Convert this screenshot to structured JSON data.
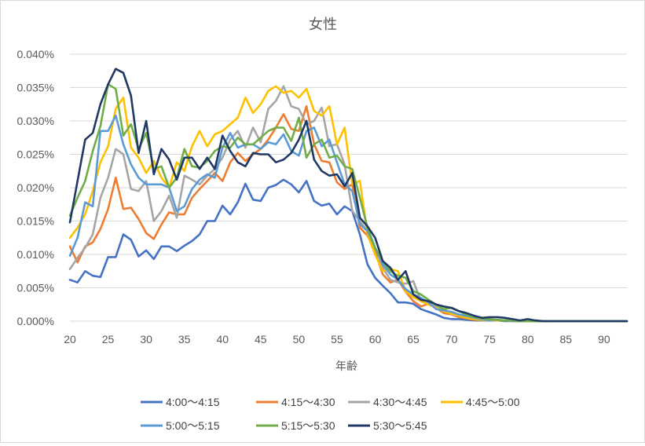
{
  "chart_data": {
    "type": "line",
    "title": "女性",
    "xlabel": "年齢",
    "ylabel": "",
    "xlim": [
      20,
      93
    ],
    "ylim": [
      0,
      0.0004
    ],
    "x_ticks": [
      "20",
      "25",
      "30",
      "35",
      "40",
      "45",
      "50",
      "55",
      "60",
      "65",
      "70",
      "75",
      "80",
      "85",
      "90"
    ],
    "y_ticks": [
      "0.000%",
      "0.005%",
      "0.010%",
      "0.015%",
      "0.020%",
      "0.025%",
      "0.030%",
      "0.035%",
      "0.040%"
    ],
    "grid": "horizontal",
    "legend_position": "bottom",
    "x": [
      20,
      21,
      22,
      23,
      24,
      25,
      26,
      27,
      28,
      29,
      30,
      31,
      32,
      33,
      34,
      35,
      36,
      37,
      38,
      39,
      40,
      41,
      42,
      43,
      44,
      45,
      46,
      47,
      48,
      49,
      50,
      51,
      52,
      53,
      54,
      55,
      56,
      57,
      58,
      59,
      60,
      61,
      62,
      63,
      64,
      65,
      66,
      67,
      68,
      69,
      70,
      71,
      72,
      73,
      74,
      75,
      76,
      77,
      78,
      79,
      80,
      81,
      82,
      83,
      84,
      85,
      86,
      87,
      88,
      89,
      90,
      91,
      92,
      93
    ],
    "series": [
      {
        "name": "4:00〜4:15",
        "color": "#4472c4",
        "values": [
          6.2e-05,
          5.8e-05,
          7.5e-05,
          6.8e-05,
          6.6e-05,
          9.6e-05,
          9.6e-05,
          0.00013,
          0.000122,
          9.7e-05,
          0.000106,
          9.3e-05,
          0.000112,
          0.000112,
          0.000105,
          0.000113,
          0.00012,
          0.00013,
          0.00015,
          0.00015,
          0.000173,
          0.00016,
          0.000178,
          0.000206,
          0.000182,
          0.00018,
          0.0002,
          0.000204,
          0.000212,
          0.000205,
          0.000193,
          0.00021,
          0.00018,
          0.000173,
          0.000176,
          0.00016,
          0.000172,
          0.000165,
          0.00013,
          8.5e-05,
          6.5e-05,
          5.3e-05,
          4.2e-05,
          2.8e-05,
          2.8e-05,
          2.6e-05,
          1.8e-05,
          1.4e-05,
          1e-05,
          5e-06,
          3e-06,
          3e-06,
          2e-06,
          1e-06,
          1e-06,
          1e-06,
          1e-06,
          0.0,
          0.0,
          0.0,
          0.0,
          0.0,
          0.0,
          0.0,
          0.0,
          0.0,
          0.0,
          0.0,
          0.0,
          0.0,
          0.0,
          0.0,
          0.0,
          0.0
        ]
      },
      {
        "name": "4:15〜4:30",
        "color": "#ed7d31",
        "values": [
          0.000112,
          8.8e-05,
          0.000112,
          0.000118,
          0.000138,
          0.000168,
          0.000215,
          0.000168,
          0.00017,
          0.000153,
          0.000132,
          0.000123,
          0.000145,
          0.000163,
          0.00016,
          0.00016,
          0.000185,
          0.000198,
          0.00021,
          0.000222,
          0.00021,
          0.000238,
          0.000252,
          0.00024,
          0.00025,
          0.000258,
          0.000272,
          0.00029,
          0.00031,
          0.000288,
          0.000285,
          0.000322,
          0.000265,
          0.00024,
          0.000238,
          0.000208,
          0.000198,
          0.000205,
          0.00014,
          0.000128,
          0.000105,
          7e-05,
          5.8e-05,
          6.2e-05,
          4.4e-05,
          3e-05,
          2.2e-05,
          2.6e-05,
          2e-05,
          1.2e-05,
          1e-05,
          6e-06,
          4e-06,
          2e-06,
          2e-06,
          2e-06,
          1e-06,
          1e-06,
          0.0,
          0.0,
          0.0,
          0.0,
          0.0,
          0.0,
          0.0,
          0.0,
          0.0,
          0.0,
          0.0,
          0.0,
          0.0,
          0.0,
          0.0,
          0.0
        ]
      },
      {
        "name": "4:30〜4:45",
        "color": "#a5a5a5",
        "values": [
          7.8e-05,
          9.5e-05,
          0.00011,
          0.00013,
          0.000185,
          0.000215,
          0.000258,
          0.00025,
          0.000198,
          0.000195,
          0.00021,
          0.00015,
          0.000165,
          0.000188,
          0.000155,
          0.000218,
          0.000212,
          0.000205,
          0.000218,
          0.000228,
          0.000245,
          0.000272,
          0.000285,
          0.00026,
          0.00029,
          0.000268,
          0.000318,
          0.00033,
          0.000352,
          0.000322,
          0.000318,
          0.000295,
          0.0003,
          0.00032,
          0.000262,
          0.000265,
          0.000235,
          0.000165,
          0.00015,
          0.000135,
          0.0001,
          8e-05,
          6.2e-05,
          5.8e-05,
          5.6e-05,
          6e-05,
          3e-05,
          2.5e-05,
          2.2e-05,
          1.8e-05,
          1e-05,
          8e-06,
          5e-06,
          3e-06,
          2e-06,
          2e-06,
          1e-06,
          1e-06,
          0.0,
          0.0,
          0.0,
          0.0,
          0.0,
          0.0,
          0.0,
          0.0,
          0.0,
          0.0,
          0.0,
          0.0,
          0.0,
          0.0,
          0.0,
          0.0
        ]
      },
      {
        "name": "4:45〜5:00",
        "color": "#ffc000",
        "values": [
          0.000125,
          0.00014,
          0.00016,
          0.000195,
          0.000238,
          0.000262,
          0.000318,
          0.000335,
          0.00026,
          0.000245,
          0.000222,
          0.00024,
          0.000215,
          0.0002,
          0.000238,
          0.000225,
          0.000262,
          0.000285,
          0.000262,
          0.00028,
          0.000285,
          0.000295,
          0.000305,
          0.000335,
          0.000312,
          0.000325,
          0.000345,
          0.000352,
          0.000342,
          0.000345,
          0.000335,
          0.000348,
          0.000315,
          0.000308,
          0.000322,
          0.000265,
          0.00029,
          0.000205,
          0.00021,
          0.00013,
          0.0001,
          7.5e-05,
          7.8e-05,
          7.5e-05,
          4.5e-05,
          3.6e-05,
          3e-05,
          2.5e-05,
          2e-05,
          1.5e-05,
          1.1e-05,
          8e-06,
          5e-06,
          3e-06,
          2e-06,
          2e-06,
          1e-06,
          1e-06,
          0.0,
          0.0,
          0.0,
          0.0,
          0.0,
          0.0,
          0.0,
          0.0,
          0.0,
          0.0,
          0.0,
          0.0,
          0.0,
          0.0,
          0.0,
          0.0
        ]
      },
      {
        "name": "5:00〜5:15",
        "color": "#5b9bd5",
        "values": [
          9.8e-05,
          0.000125,
          0.000178,
          0.000172,
          0.000285,
          0.000285,
          0.000308,
          0.000265,
          0.000235,
          0.000215,
          0.000205,
          0.000205,
          0.000205,
          0.0002,
          0.000165,
          0.000172,
          0.000198,
          0.000212,
          0.00022,
          0.000215,
          0.00026,
          0.000282,
          0.00026,
          0.000265,
          0.000265,
          0.000258,
          0.000268,
          0.000265,
          0.00028,
          0.000255,
          0.000248,
          0.000285,
          0.00029,
          0.000262,
          0.000272,
          0.000238,
          0.000205,
          0.000195,
          0.000145,
          0.000135,
          0.00011,
          8.5e-05,
          7e-05,
          6.2e-05,
          4.8e-05,
          4e-05,
          3.5e-05,
          2.8e-05,
          1.8e-05,
          1.6e-05,
          1.4e-05,
          1e-05,
          8e-06,
          5e-06,
          3e-06,
          2e-06,
          2e-06,
          1e-06,
          0.0,
          0.0,
          0.0,
          0.0,
          0.0,
          0.0,
          0.0,
          0.0,
          0.0,
          0.0,
          0.0,
          0.0,
          0.0,
          0.0,
          0.0,
          0.0
        ]
      },
      {
        "name": "5:15〜5:30",
        "color": "#70ad47",
        "values": [
          0.000158,
          0.000185,
          0.00021,
          0.000255,
          0.000292,
          0.000355,
          0.000348,
          0.000278,
          0.000295,
          0.000258,
          0.000282,
          0.000228,
          0.000232,
          0.0002,
          0.000215,
          0.000258,
          0.000232,
          0.00023,
          0.00024,
          0.000255,
          0.000262,
          0.00026,
          0.000275,
          0.000265,
          0.000265,
          0.000275,
          0.000285,
          0.00029,
          0.00029,
          0.00027,
          0.000305,
          0.000245,
          0.000265,
          0.000272,
          0.000245,
          0.000248,
          0.000232,
          0.000228,
          0.000185,
          0.00014,
          0.00011,
          9e-05,
          7.5e-05,
          6.8e-05,
          6.5e-05,
          4.5e-05,
          4e-05,
          3.2e-05,
          2.5e-05,
          1.8e-05,
          2e-05,
          1.5e-05,
          1e-05,
          6e-06,
          4e-06,
          3e-06,
          2e-06,
          1e-06,
          1e-06,
          0.0,
          0.0,
          0.0,
          0.0,
          0.0,
          0.0,
          0.0,
          0.0,
          0.0,
          0.0,
          0.0,
          0.0,
          0.0,
          0.0,
          0.0
        ]
      },
      {
        "name": "5:30〜5:45",
        "color": "#203864",
        "values": [
          0.000148,
          0.00021,
          0.000272,
          0.000282,
          0.000325,
          0.000355,
          0.000378,
          0.000372,
          0.000338,
          0.000252,
          0.0003,
          0.00022,
          0.000258,
          0.000242,
          0.000212,
          0.000245,
          0.000245,
          0.000228,
          0.000245,
          0.000228,
          0.000278,
          0.000255,
          0.000238,
          0.000232,
          0.000252,
          0.00025,
          0.00025,
          0.000238,
          0.000242,
          0.000252,
          0.000272,
          0.0003,
          0.000242,
          0.000225,
          0.000218,
          0.00022,
          0.000202,
          0.000222,
          0.000155,
          0.000142,
          0.000125,
          9e-05,
          8e-05,
          6.2e-05,
          7.5e-05,
          4e-05,
          3.2e-05,
          3e-05,
          2.5e-05,
          2.2e-05,
          2e-05,
          1.5e-05,
          1.2e-05,
          8e-06,
          5e-06,
          6e-06,
          6e-06,
          5e-06,
          3e-06,
          1e-06,
          3e-06,
          1e-06,
          0.0,
          0.0,
          0.0,
          0.0,
          0.0,
          0.0,
          0.0,
          0.0,
          0.0,
          0.0,
          0.0,
          0.0
        ]
      }
    ]
  }
}
